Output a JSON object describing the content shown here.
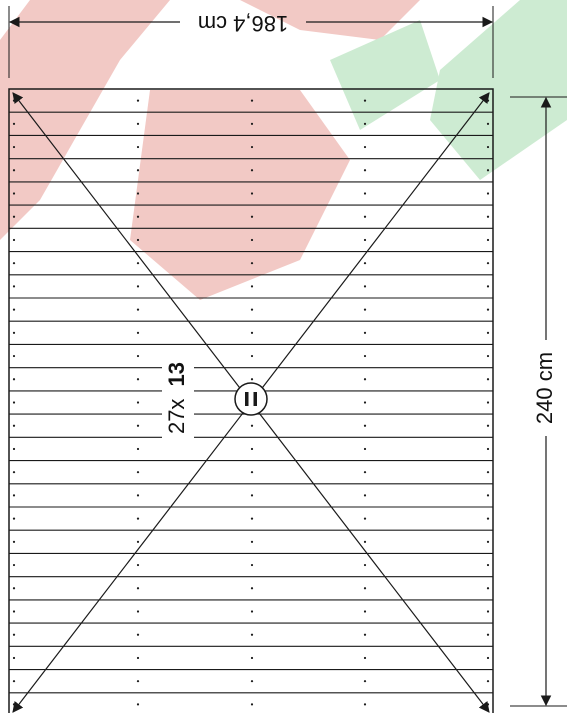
{
  "colors": {
    "watermark_red": "#f2c9c5",
    "watermark_green": "#cdebd2",
    "line": "#1a1a1a",
    "background": "#ffffff"
  },
  "dimensions": {
    "width_label": "186,4 cm",
    "height_label": "240 cm"
  },
  "layout_label": {
    "count": "27x",
    "size": "13"
  },
  "plan": {
    "plank_count": 27,
    "direction_symbol": "parallel-lines-icon"
  }
}
